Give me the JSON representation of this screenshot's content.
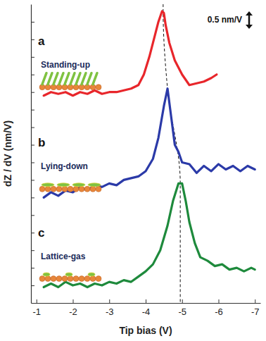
{
  "chart_data": {
    "type": "line",
    "x_label": "Tip bias  (V)",
    "y_label": "dZ / dV  (nm/V)",
    "xlim": [
      -0.85,
      -7.15
    ],
    "xticks": [
      -1,
      -2,
      -3,
      -4,
      -5,
      -6,
      -7
    ],
    "ylim": [
      0,
      8.5
    ],
    "yticks": [
      0.5,
      1,
      1.5,
      2,
      2.5,
      3,
      3.5,
      4,
      4.5,
      5,
      5.5,
      6,
      6.5,
      7,
      7.5,
      8
    ],
    "tick_labels": "x",
    "scale_bar": {
      "value": 0.5,
      "label": "0.5 nm/V"
    },
    "peak_line": {
      "x": [
        -4.48,
        -4.48,
        -4.6,
        -4.95,
        -4.95
      ],
      "y": [
        8.5,
        8.3,
        6.1,
        3.42,
        0
      ]
    },
    "series": [
      {
        "name": "Standing-up",
        "label": "a",
        "color": "#e8262b",
        "x": [
          -1.2,
          -1.4,
          -1.6,
          -1.8,
          -2.0,
          -2.2,
          -2.4,
          -2.6,
          -2.8,
          -3.0,
          -3.2,
          -3.4,
          -3.6,
          -3.8,
          -3.95,
          -4.1,
          -4.25,
          -4.35,
          -4.45,
          -4.5,
          -4.55,
          -4.65,
          -4.8,
          -5.0,
          -5.2,
          -5.4,
          -5.6,
          -5.8,
          -5.95
        ],
        "values": [
          5.9,
          6.0,
          5.95,
          6.0,
          5.9,
          6.0,
          5.95,
          6.05,
          5.95,
          6.0,
          6.0,
          6.05,
          6.1,
          6.2,
          6.5,
          7.0,
          7.6,
          8.0,
          8.3,
          8.25,
          7.9,
          7.4,
          6.9,
          6.5,
          6.2,
          6.25,
          6.3,
          6.4,
          6.5
        ]
      },
      {
        "name": "Lying-down",
        "label": "b",
        "color": "#2b3aa8",
        "x": [
          -1.2,
          -1.4,
          -1.6,
          -1.8,
          -2.0,
          -2.2,
          -2.4,
          -2.6,
          -2.8,
          -3.0,
          -3.2,
          -3.4,
          -3.6,
          -3.8,
          -4.0,
          -4.2,
          -4.35,
          -4.5,
          -4.6,
          -4.7,
          -4.8,
          -4.9,
          -5.0,
          -5.2,
          -5.4,
          -5.6,
          -5.8,
          -6.0,
          -6.2,
          -6.4,
          -6.6,
          -6.8,
          -7.0
        ],
        "values": [
          3.0,
          3.15,
          3.05,
          3.2,
          3.15,
          3.3,
          3.2,
          3.35,
          3.3,
          3.4,
          3.35,
          3.5,
          3.55,
          3.6,
          3.75,
          4.1,
          4.7,
          5.6,
          6.1,
          5.3,
          4.5,
          4.3,
          4.0,
          3.95,
          3.7,
          3.9,
          3.75,
          3.95,
          3.8,
          3.9,
          3.75,
          3.9,
          3.8
        ]
      },
      {
        "name": "Lattice-gas",
        "label": "c",
        "color": "#1e8a3c",
        "x": [
          -1.2,
          -1.4,
          -1.6,
          -1.8,
          -2.0,
          -2.2,
          -2.4,
          -2.6,
          -2.8,
          -3.0,
          -3.2,
          -3.4,
          -3.6,
          -3.8,
          -4.0,
          -4.2,
          -4.4,
          -4.6,
          -4.75,
          -4.9,
          -5.0,
          -5.1,
          -5.2,
          -5.35,
          -5.5,
          -5.7,
          -5.9,
          -6.1,
          -6.3,
          -6.5,
          -6.7,
          -6.9,
          -7.0
        ],
        "values": [
          0.45,
          0.55,
          0.45,
          0.6,
          0.5,
          0.55,
          0.45,
          0.55,
          0.5,
          0.6,
          0.55,
          0.65,
          0.6,
          0.75,
          0.9,
          1.1,
          1.5,
          2.2,
          2.9,
          3.4,
          3.4,
          2.9,
          2.3,
          1.7,
          1.3,
          1.2,
          1.05,
          1.1,
          0.95,
          1.0,
          0.9,
          1.0,
          0.95
        ]
      }
    ]
  }
}
